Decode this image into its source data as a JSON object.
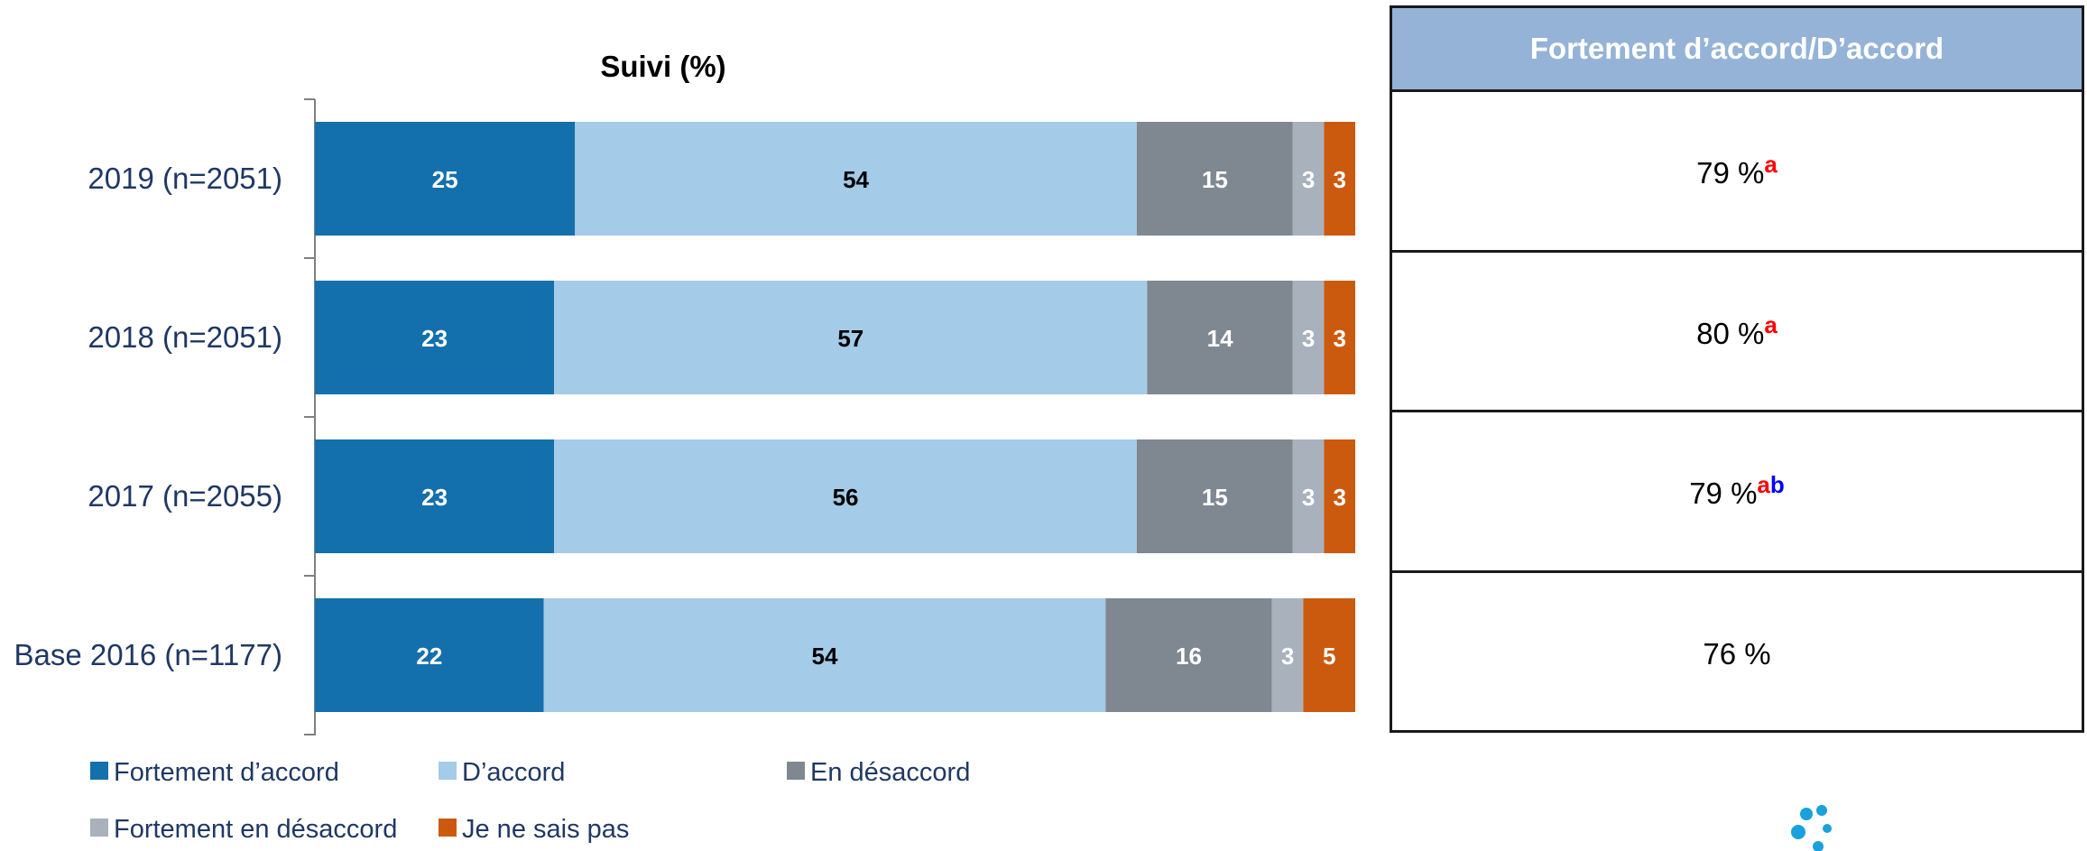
{
  "chart_data": {
    "type": "bar",
    "orientation": "horizontal",
    "stacked": true,
    "title": "Suivi (%)",
    "categories": [
      "2019 (n=2051)",
      "2018 (n=2051)",
      "2017 (n=2055)",
      "Base 2016 (n=1177)"
    ],
    "series": [
      {
        "name": "Fortement d’accord",
        "color": "#1470ac",
        "label_color": "#ffffff",
        "values": [
          25,
          23,
          23,
          22
        ]
      },
      {
        "name": "D’accord",
        "color": "#a4cbe7",
        "label_color": "#000000",
        "values": [
          54,
          57,
          56,
          54
        ]
      },
      {
        "name": "En désaccord",
        "color": "#7f8791",
        "label_color": "#ffffff",
        "values": [
          15,
          14,
          15,
          16
        ]
      },
      {
        "name": "Fortement en désaccord",
        "color": "#a8b1bc",
        "label_color": "#ffffff",
        "values": [
          3,
          3,
          3,
          3
        ]
      },
      {
        "name": "Je ne sais pas",
        "color": "#cc5a0e",
        "label_color": "#ffffff",
        "values": [
          3,
          3,
          3,
          5
        ]
      }
    ],
    "xlim": [
      0,
      100
    ],
    "legend_position": "bottom-left",
    "grid": false
  },
  "summary_table": {
    "header": "Fortement d’accord/D’accord",
    "rows": [
      {
        "value": "79 %",
        "sup_a": "a",
        "sup_b": ""
      },
      {
        "value": "80 %",
        "sup_a": "a",
        "sup_b": ""
      },
      {
        "value": "79 %",
        "sup_a": "a",
        "sup_b": "b"
      },
      {
        "value": "76 %",
        "sup_a": "",
        "sup_b": ""
      }
    ]
  },
  "logo": {
    "icon": "dots-logo-icon",
    "color": "#1aa0dc"
  }
}
